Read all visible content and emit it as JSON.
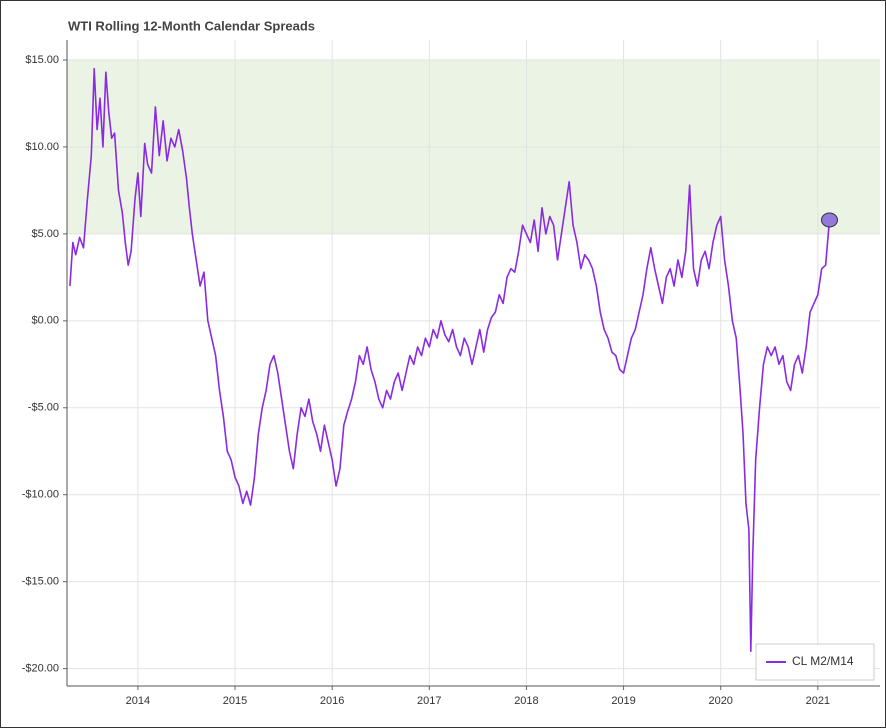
{
  "chart_data": {
    "type": "line",
    "title": "WTI Rolling 12-Month Calendar Spreads",
    "xlim": [
      2013.27,
      2021.64
    ],
    "xticks": [
      2014,
      2015,
      2016,
      2017,
      2018,
      2019,
      2020,
      2021
    ],
    "ylim": [
      -21,
      16.15
    ],
    "yticks": [
      {
        "value": 15,
        "label": "$15.00"
      },
      {
        "value": 10,
        "label": "$10.00"
      },
      {
        "value": 5,
        "label": "$5.00"
      },
      {
        "value": 0,
        "label": "$0.00"
      },
      {
        "value": -5,
        "label": "-$5.00"
      },
      {
        "value": -10,
        "label": "-$10.00"
      },
      {
        "value": -15,
        "label": "-$15.00"
      },
      {
        "value": -20,
        "label": "-$20.00"
      }
    ],
    "grid": true,
    "band": [
      5,
      15
    ],
    "band_color": "#ebf4e4",
    "legend_position": "lower right",
    "marker_color": "#9379d9",
    "series": [
      {
        "name": "CL M2/M14",
        "color": "#8a2be2",
        "x": [
          2013.3,
          2013.33,
          2013.36,
          2013.4,
          2013.44,
          2013.48,
          2013.52,
          2013.55,
          2013.58,
          2013.61,
          2013.64,
          2013.67,
          2013.7,
          2013.73,
          2013.76,
          2013.8,
          2013.84,
          2013.87,
          2013.9,
          2013.93,
          2013.97,
          2014.0,
          2014.03,
          2014.07,
          2014.1,
          2014.14,
          2014.18,
          2014.22,
          2014.26,
          2014.3,
          2014.34,
          2014.38,
          2014.42,
          2014.46,
          2014.5,
          2014.53,
          2014.56,
          2014.6,
          2014.64,
          2014.68,
          2014.72,
          2014.76,
          2014.8,
          2014.84,
          2014.88,
          2014.92,
          2014.96,
          2015.0,
          2015.04,
          2015.08,
          2015.12,
          2015.16,
          2015.2,
          2015.24,
          2015.28,
          2015.32,
          2015.36,
          2015.4,
          2015.44,
          2015.48,
          2015.52,
          2015.56,
          2015.6,
          2015.64,
          2015.68,
          2015.72,
          2015.76,
          2015.8,
          2015.84,
          2015.88,
          2015.92,
          2015.96,
          2016.0,
          2016.04,
          2016.08,
          2016.12,
          2016.16,
          2016.2,
          2016.24,
          2016.28,
          2016.32,
          2016.36,
          2016.4,
          2016.44,
          2016.48,
          2016.52,
          2016.56,
          2016.6,
          2016.64,
          2016.68,
          2016.72,
          2016.76,
          2016.8,
          2016.84,
          2016.88,
          2016.92,
          2016.96,
          2017.0,
          2017.04,
          2017.08,
          2017.12,
          2017.16,
          2017.2,
          2017.24,
          2017.28,
          2017.32,
          2017.36,
          2017.4,
          2017.44,
          2017.48,
          2017.52,
          2017.56,
          2017.6,
          2017.64,
          2017.68,
          2017.72,
          2017.76,
          2017.8,
          2017.84,
          2017.88,
          2017.92,
          2017.96,
          2018.0,
          2018.04,
          2018.08,
          2018.12,
          2018.16,
          2018.2,
          2018.24,
          2018.28,
          2018.32,
          2018.36,
          2018.4,
          2018.44,
          2018.48,
          2018.52,
          2018.56,
          2018.6,
          2018.64,
          2018.68,
          2018.72,
          2018.76,
          2018.8,
          2018.84,
          2018.88,
          2018.92,
          2018.96,
          2019.0,
          2019.04,
          2019.08,
          2019.12,
          2019.16,
          2019.2,
          2019.24,
          2019.28,
          2019.32,
          2019.36,
          2019.4,
          2019.44,
          2019.48,
          2019.52,
          2019.56,
          2019.6,
          2019.64,
          2019.68,
          2019.72,
          2019.76,
          2019.8,
          2019.84,
          2019.88,
          2019.92,
          2019.96,
          2020.0,
          2020.04,
          2020.08,
          2020.12,
          2020.16,
          2020.2,
          2020.23,
          2020.26,
          2020.29,
          2020.31,
          2020.33,
          2020.36,
          2020.4,
          2020.44,
          2020.48,
          2020.52,
          2020.56,
          2020.6,
          2020.64,
          2020.68,
          2020.72,
          2020.76,
          2020.8,
          2020.84,
          2020.88,
          2020.92,
          2020.96,
          2021.0,
          2021.04,
          2021.08,
          2021.12
        ],
        "values": [
          2.0,
          4.5,
          3.8,
          4.8,
          4.2,
          7.0,
          9.5,
          14.5,
          11.0,
          12.8,
          10.0,
          14.3,
          12.0,
          10.5,
          10.8,
          7.5,
          6.2,
          4.5,
          3.2,
          4.0,
          7.0,
          8.5,
          6.0,
          10.2,
          9.0,
          8.5,
          12.3,
          9.5,
          11.5,
          9.2,
          10.5,
          10.0,
          11.0,
          9.8,
          8.2,
          6.5,
          5.0,
          3.5,
          2.0,
          2.8,
          0.0,
          -1.0,
          -2.0,
          -4.0,
          -5.5,
          -7.5,
          -8.0,
          -9.0,
          -9.5,
          -10.5,
          -9.8,
          -10.6,
          -9.0,
          -6.5,
          -5.0,
          -4.0,
          -2.5,
          -2.0,
          -3.0,
          -4.5,
          -6.0,
          -7.5,
          -8.5,
          -6.5,
          -5.0,
          -5.5,
          -4.5,
          -5.8,
          -6.5,
          -7.5,
          -6.0,
          -7.0,
          -8.0,
          -9.5,
          -8.5,
          -6.0,
          -5.2,
          -4.5,
          -3.5,
          -2.0,
          -2.5,
          -1.5,
          -2.8,
          -3.5,
          -4.5,
          -5.0,
          -4.0,
          -4.5,
          -3.5,
          -3.0,
          -4.0,
          -3.0,
          -2.0,
          -2.5,
          -1.5,
          -2.0,
          -1.0,
          -1.5,
          -0.5,
          -1.0,
          0.0,
          -0.8,
          -1.2,
          -0.5,
          -1.5,
          -2.0,
          -1.0,
          -1.5,
          -2.5,
          -1.5,
          -0.5,
          -1.8,
          -0.5,
          0.2,
          0.5,
          1.5,
          1.0,
          2.5,
          3.0,
          2.8,
          4.0,
          5.5,
          5.0,
          4.5,
          5.8,
          4.0,
          6.5,
          5.0,
          6.0,
          5.5,
          3.5,
          5.0,
          6.5,
          8.0,
          5.5,
          4.5,
          3.0,
          3.8,
          3.5,
          3.0,
          2.0,
          0.5,
          -0.5,
          -1.0,
          -1.8,
          -2.0,
          -2.8,
          -3.0,
          -2.0,
          -1.0,
          -0.5,
          0.5,
          1.5,
          3.0,
          4.2,
          3.0,
          2.0,
          1.0,
          2.5,
          3.0,
          2.0,
          3.5,
          2.5,
          4.0,
          7.8,
          3.0,
          2.0,
          3.5,
          4.0,
          3.0,
          4.5,
          5.5,
          6.0,
          3.5,
          2.0,
          0.0,
          -1.0,
          -4.0,
          -6.5,
          -10.5,
          -12.0,
          -19.0,
          -13.5,
          -8.0,
          -5.0,
          -2.5,
          -1.5,
          -2.0,
          -1.5,
          -2.5,
          -2.0,
          -3.5,
          -4.0,
          -2.5,
          -2.0,
          -3.0,
          -1.5,
          0.5,
          1.0,
          1.5,
          3.0,
          3.2,
          5.8
        ]
      }
    ]
  }
}
